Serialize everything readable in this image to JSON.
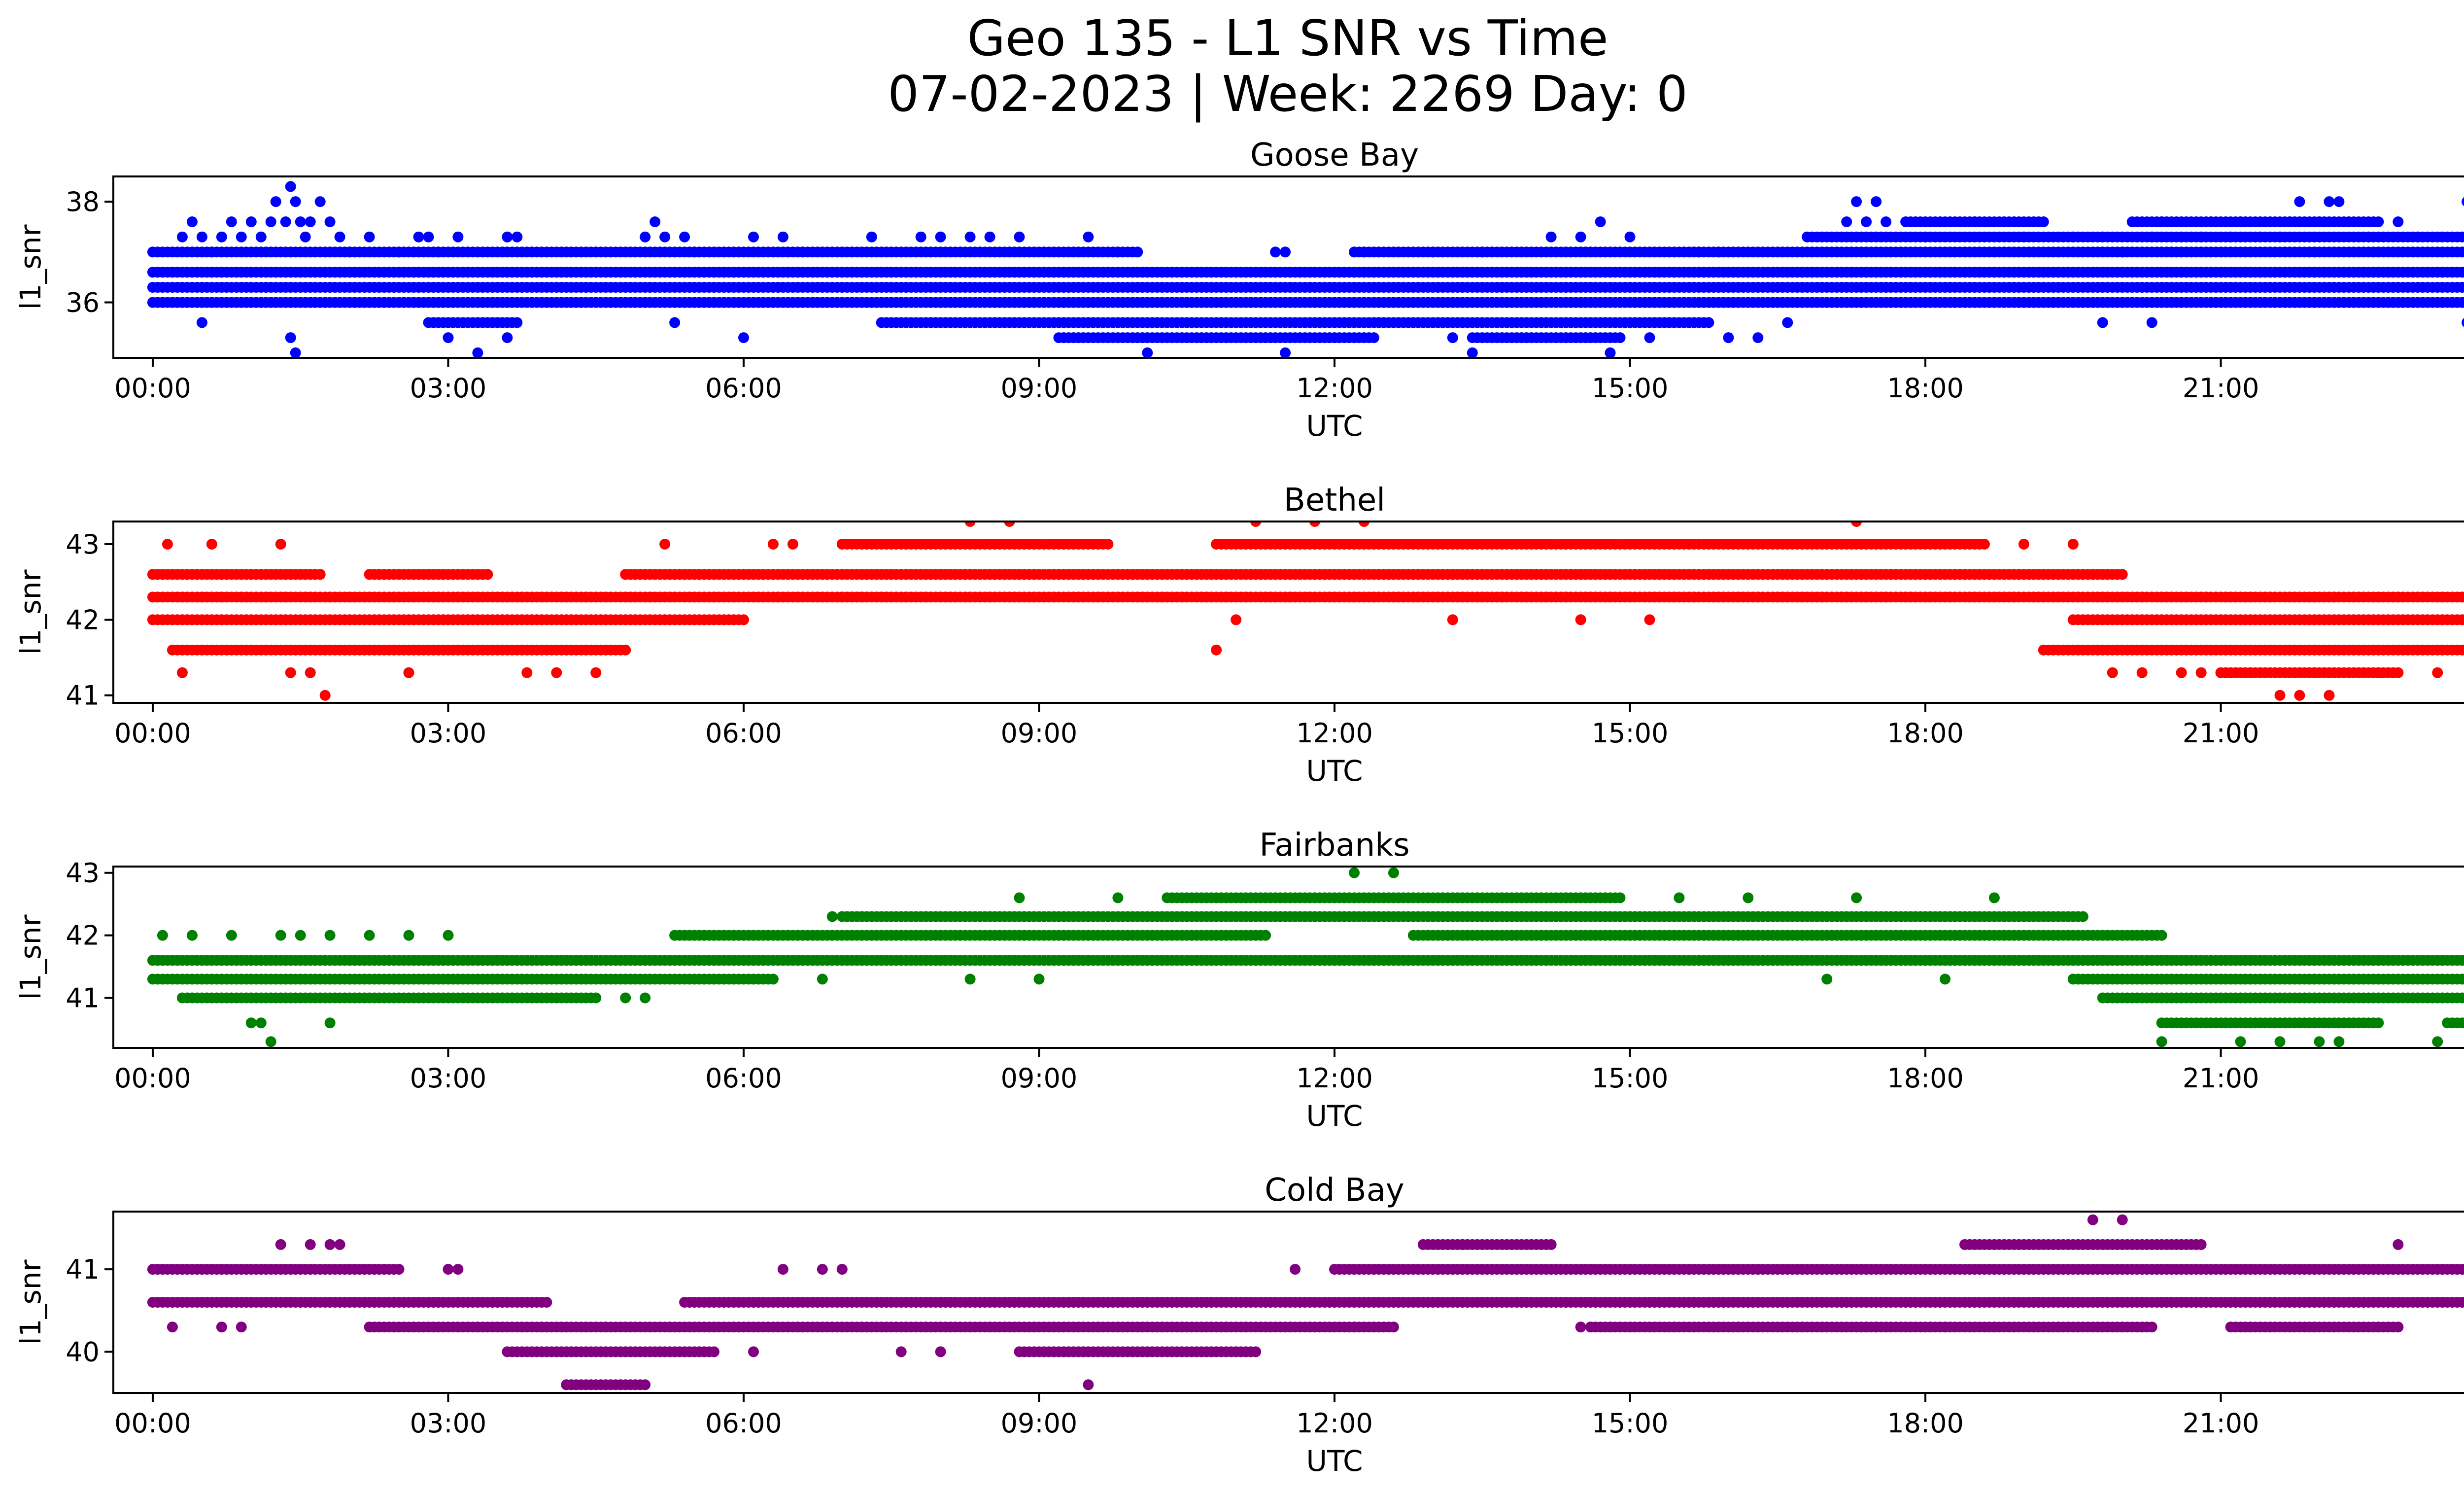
{
  "figure": {
    "title_line1": "Geo 135 - L1 SNR vs Time",
    "title_line2": "07-02-2023 | Week: 2269 Day: 0"
  },
  "chart_data": [
    {
      "type": "scatter",
      "title": "Goose Bay",
      "xlabel": "UTC",
      "ylabel": "l1_snr",
      "color": "#0000ff",
      "xlim": [
        -0.4,
        24.4
      ],
      "ylim": [
        34.9,
        38.5
      ],
      "xticks": [
        "00:00",
        "03:00",
        "06:00",
        "09:00",
        "12:00",
        "15:00",
        "18:00",
        "21:00",
        "00:00"
      ],
      "yticks": [
        36,
        38
      ],
      "bands": [
        {
          "y": 36.3,
          "ranges": [
            [
              0,
              24
            ]
          ]
        },
        {
          "y": 36.6,
          "ranges": [
            [
              0,
              24
            ]
          ]
        },
        {
          "y": 37.0,
          "ranges": [
            [
              0,
              10.0
            ],
            [
              12.2,
              24
            ]
          ]
        },
        {
          "y": 36.0,
          "ranges": [
            [
              0,
              24
            ]
          ]
        },
        {
          "y": 37.3,
          "ranges": [
            [
              16.8,
              24
            ]
          ]
        },
        {
          "y": 37.6,
          "ranges": [
            [
              17.8,
              19.2
            ],
            [
              20.1,
              22.6
            ]
          ]
        },
        {
          "y": 35.6,
          "ranges": [
            [
              2.8,
              3.7
            ],
            [
              7.4,
              15.8
            ]
          ]
        },
        {
          "y": 35.3,
          "ranges": [
            [
              9.2,
              12.4
            ],
            [
              13.4,
              14.9
            ]
          ]
        }
      ],
      "scatter": [
        [
          0.3,
          37.3
        ],
        [
          0.4,
          37.6
        ],
        [
          0.5,
          37.3
        ],
        [
          0.6,
          37.0
        ],
        [
          0.7,
          37.3
        ],
        [
          0.8,
          37.6
        ],
        [
          0.9,
          37.3
        ],
        [
          1.0,
          37.6
        ],
        [
          1.1,
          37.3
        ],
        [
          1.2,
          37.6
        ],
        [
          1.25,
          38.0
        ],
        [
          1.35,
          37.6
        ],
        [
          1.4,
          38.3
        ],
        [
          1.45,
          38.0
        ],
        [
          1.5,
          37.6
        ],
        [
          1.55,
          37.3
        ],
        [
          1.6,
          37.6
        ],
        [
          1.7,
          38.0
        ],
        [
          1.8,
          37.6
        ],
        [
          1.9,
          37.3
        ],
        [
          2.0,
          37.0
        ],
        [
          2.2,
          37.3
        ],
        [
          2.5,
          37.0
        ],
        [
          2.7,
          37.3
        ],
        [
          2.8,
          37.3
        ],
        [
          2.9,
          37.0
        ],
        [
          3.1,
          37.3
        ],
        [
          3.6,
          37.3
        ],
        [
          3.7,
          37.3
        ],
        [
          5.0,
          37.3
        ],
        [
          5.1,
          37.6
        ],
        [
          5.2,
          37.3
        ],
        [
          5.4,
          37.3
        ],
        [
          5.5,
          37.0
        ],
        [
          6.1,
          37.3
        ],
        [
          6.4,
          37.3
        ],
        [
          6.6,
          37.0
        ],
        [
          7.3,
          37.3
        ],
        [
          7.8,
          37.3
        ],
        [
          8.0,
          37.3
        ],
        [
          8.3,
          37.3
        ],
        [
          8.5,
          37.3
        ],
        [
          8.8,
          37.3
        ],
        [
          9.5,
          37.3
        ],
        [
          9.8,
          37.0
        ],
        [
          11.4,
          37.0
        ],
        [
          11.5,
          37.0
        ],
        [
          12.3,
          37.0
        ],
        [
          13.0,
          37.0
        ],
        [
          13.5,
          37.0
        ],
        [
          14.2,
          37.3
        ],
        [
          14.5,
          37.3
        ],
        [
          14.7,
          37.6
        ],
        [
          15.0,
          37.3
        ],
        [
          15.7,
          37.0
        ],
        [
          15.9,
          37.0
        ],
        [
          17.2,
          37.6
        ],
        [
          17.3,
          38.0
        ],
        [
          17.4,
          37.6
        ],
        [
          17.5,
          38.0
        ],
        [
          17.6,
          37.6
        ],
        [
          18.0,
          37.3
        ],
        [
          18.5,
          37.6
        ],
        [
          19.0,
          37.3
        ],
        [
          19.5,
          37.3
        ],
        [
          19.8,
          37.3
        ],
        [
          20.0,
          37.0
        ],
        [
          20.3,
          37.3
        ],
        [
          20.4,
          37.6
        ],
        [
          20.6,
          37.3
        ],
        [
          20.8,
          37.3
        ],
        [
          20.9,
          37.6
        ],
        [
          21.1,
          37.3
        ],
        [
          21.2,
          37.6
        ],
        [
          21.4,
          37.3
        ],
        [
          21.6,
          37.3
        ],
        [
          21.7,
          37.6
        ],
        [
          21.8,
          38.0
        ],
        [
          22.0,
          37.6
        ],
        [
          22.1,
          38.0
        ],
        [
          22.2,
          38.0
        ],
        [
          22.3,
          37.6
        ],
        [
          22.5,
          37.3
        ],
        [
          22.8,
          37.6
        ],
        [
          23.0,
          37.3
        ],
        [
          23.5,
          38.0
        ],
        [
          23.9,
          37.3
        ],
        [
          24.0,
          37.3
        ],
        [
          1.45,
          35.0
        ],
        [
          1.4,
          35.3
        ],
        [
          3.3,
          35.0
        ],
        [
          3.0,
          35.3
        ],
        [
          3.6,
          35.3
        ],
        [
          5.3,
          35.6
        ],
        [
          6.0,
          35.3
        ],
        [
          0.5,
          35.6
        ],
        [
          11.5,
          35.0
        ],
        [
          13.4,
          35.0
        ],
        [
          14.8,
          35.0
        ],
        [
          10.1,
          35.0
        ],
        [
          13.2,
          35.3
        ],
        [
          15.2,
          35.3
        ],
        [
          16.0,
          35.3
        ],
        [
          16.3,
          35.3
        ],
        [
          16.6,
          35.6
        ],
        [
          19.8,
          35.6
        ],
        [
          20.3,
          35.6
        ],
        [
          23.5,
          35.6
        ],
        [
          23.8,
          35.3
        ],
        [
          24.0,
          35.6
        ]
      ]
    },
    {
      "type": "scatter",
      "title": "Bethel",
      "xlabel": "UTC",
      "ylabel": "l1_snr",
      "color": "#ff0000",
      "xlim": [
        -0.4,
        24.4
      ],
      "ylim": [
        40.9,
        43.3
      ],
      "xticks": [
        "00:00",
        "03:00",
        "06:00",
        "09:00",
        "12:00",
        "15:00",
        "18:00",
        "21:00",
        "00:00"
      ],
      "yticks": [
        41,
        42,
        43
      ],
      "bands": [
        {
          "y": 42.3,
          "ranges": [
            [
              0,
              24
            ]
          ]
        },
        {
          "y": 42.0,
          "ranges": [
            [
              0,
              6.0
            ],
            [
              19.5,
              24
            ]
          ]
        },
        {
          "y": 42.6,
          "ranges": [
            [
              0,
              1.7
            ],
            [
              2.2,
              3.4
            ],
            [
              4.8,
              20.0
            ]
          ]
        },
        {
          "y": 41.6,
          "ranges": [
            [
              0.2,
              4.8
            ],
            [
              19.2,
              23.9
            ]
          ]
        },
        {
          "y": 41.3,
          "ranges": [
            [
              21.0,
              22.8
            ]
          ]
        },
        {
          "y": 43.0,
          "ranges": [
            [
              7.0,
              9.7
            ],
            [
              10.8,
              18.6
            ]
          ]
        }
      ],
      "scatter": [
        [
          0.15,
          43.0
        ],
        [
          0.6,
          43.0
        ],
        [
          1.3,
          43.0
        ],
        [
          0.3,
          41.3
        ],
        [
          1.4,
          41.3
        ],
        [
          1.6,
          41.3
        ],
        [
          1.75,
          41.0
        ],
        [
          2.6,
          41.3
        ],
        [
          3.8,
          41.3
        ],
        [
          4.1,
          41.3
        ],
        [
          4.5,
          41.3
        ],
        [
          5.2,
          43.0
        ],
        [
          6.3,
          43.0
        ],
        [
          6.5,
          43.0
        ],
        [
          8.3,
          43.3
        ],
        [
          8.7,
          43.3
        ],
        [
          11.2,
          43.3
        ],
        [
          11.8,
          43.3
        ],
        [
          12.3,
          43.3
        ],
        [
          17.3,
          43.3
        ],
        [
          10.8,
          41.6
        ],
        [
          11.0,
          42.0
        ],
        [
          13.2,
          42.0
        ],
        [
          14.5,
          42.0
        ],
        [
          15.2,
          42.0
        ],
        [
          19.0,
          43.0
        ],
        [
          19.5,
          43.0
        ],
        [
          19.9,
          41.3
        ],
        [
          20.2,
          41.3
        ],
        [
          20.6,
          41.3
        ],
        [
          21.6,
          41.0
        ],
        [
          21.8,
          41.0
        ],
        [
          22.1,
          41.0
        ],
        [
          23.2,
          41.3
        ],
        [
          23.6,
          42.6
        ],
        [
          23.8,
          42.6
        ],
        [
          24.0,
          41.6
        ],
        [
          20.8,
          41.3
        ]
      ]
    },
    {
      "type": "scatter",
      "title": "Fairbanks",
      "xlabel": "UTC",
      "ylabel": "l1_snr",
      "color": "#008000",
      "xlim": [
        -0.4,
        24.4
      ],
      "ylim": [
        40.2,
        43.1
      ],
      "xticks": [
        "00:00",
        "03:00",
        "06:00",
        "09:00",
        "12:00",
        "15:00",
        "18:00",
        "21:00",
        "00:00"
      ],
      "yticks": [
        41,
        42,
        43
      ],
      "bands": [
        {
          "y": 41.6,
          "ranges": [
            [
              0,
              24
            ]
          ]
        },
        {
          "y": 41.3,
          "ranges": [
            [
              0,
              6.3
            ],
            [
              19.5,
              24
            ]
          ]
        },
        {
          "y": 42.0,
          "ranges": [
            [
              5.3,
              11.3
            ],
            [
              12.8,
              20.4
            ]
          ]
        },
        {
          "y": 41.0,
          "ranges": [
            [
              0.3,
              4.5
            ],
            [
              19.8,
              24
            ]
          ]
        },
        {
          "y": 42.3,
          "ranges": [
            [
              7.0,
              19.6
            ]
          ]
        },
        {
          "y": 42.6,
          "ranges": [
            [
              10.3,
              14.9
            ]
          ]
        },
        {
          "y": 40.6,
          "ranges": [
            [
              20.4,
              22.6
            ],
            [
              23.3,
              24
            ]
          ]
        }
      ],
      "scatter": [
        [
          0.1,
          42.0
        ],
        [
          0.4,
          42.0
        ],
        [
          0.8,
          42.0
        ],
        [
          1.3,
          42.0
        ],
        [
          1.5,
          42.0
        ],
        [
          1.8,
          42.0
        ],
        [
          2.2,
          42.0
        ],
        [
          2.6,
          42.0
        ],
        [
          3.0,
          42.0
        ],
        [
          1.0,
          40.6
        ],
        [
          1.1,
          40.6
        ],
        [
          1.2,
          40.3
        ],
        [
          1.8,
          40.6
        ],
        [
          8.3,
          41.3
        ],
        [
          8.8,
          42.6
        ],
        [
          9.0,
          41.3
        ],
        [
          9.8,
          42.6
        ],
        [
          12.2,
          43.0
        ],
        [
          12.6,
          43.0
        ],
        [
          17.3,
          42.6
        ],
        [
          15.5,
          42.6
        ],
        [
          16.2,
          42.6
        ],
        [
          17.0,
          41.3
        ],
        [
          18.2,
          41.3
        ],
        [
          18.7,
          42.6
        ],
        [
          20.4,
          40.3
        ],
        [
          21.2,
          40.3
        ],
        [
          21.6,
          40.3
        ],
        [
          22.0,
          40.3
        ],
        [
          22.2,
          40.3
        ],
        [
          23.2,
          40.3
        ],
        [
          5.0,
          41.0
        ],
        [
          4.8,
          41.0
        ],
        [
          6.9,
          42.3
        ],
        [
          6.8,
          41.3
        ]
      ]
    },
    {
      "type": "scatter",
      "title": "Cold Bay",
      "xlabel": "UTC",
      "ylabel": "l1_snr",
      "color": "#800080",
      "xlim": [
        -0.4,
        24.4
      ],
      "ylim": [
        39.5,
        41.7
      ],
      "xticks": [
        "00:00",
        "03:00",
        "06:00",
        "09:00",
        "12:00",
        "15:00",
        "18:00",
        "21:00",
        "00:00"
      ],
      "yticks": [
        40,
        41
      ],
      "bands": [
        {
          "y": 40.6,
          "ranges": [
            [
              0,
              4.0
            ],
            [
              5.4,
              24
            ]
          ]
        },
        {
          "y": 40.3,
          "ranges": [
            [
              2.2,
              12.6
            ],
            [
              14.6,
              20.3
            ],
            [
              21.1,
              22.8
            ]
          ]
        },
        {
          "y": 41.0,
          "ranges": [
            [
              0,
              2.5
            ],
            [
              12.0,
              24
            ]
          ]
        },
        {
          "y": 40.0,
          "ranges": [
            [
              3.6,
              5.7
            ],
            [
              8.8,
              11.2
            ]
          ]
        },
        {
          "y": 41.3,
          "ranges": [
            [
              12.9,
              14.2
            ],
            [
              18.4,
              20.8
            ]
          ]
        },
        {
          "y": 39.6,
          "ranges": [
            [
              4.2,
              5.0
            ]
          ]
        }
      ],
      "scatter": [
        [
          0.2,
          40.3
        ],
        [
          0.7,
          40.3
        ],
        [
          0.9,
          40.3
        ],
        [
          1.3,
          41.3
        ],
        [
          1.6,
          41.3
        ],
        [
          1.8,
          41.3
        ],
        [
          1.9,
          41.3
        ],
        [
          3.0,
          41.0
        ],
        [
          3.1,
          41.0
        ],
        [
          6.4,
          41.0
        ],
        [
          6.8,
          41.0
        ],
        [
          7.0,
          41.0
        ],
        [
          7.6,
          40.0
        ],
        [
          8.0,
          40.0
        ],
        [
          9.5,
          39.6
        ],
        [
          11.6,
          41.0
        ],
        [
          12.2,
          40.3
        ],
        [
          13.3,
          41.3
        ],
        [
          14.2,
          41.3
        ],
        [
          14.5,
          40.3
        ],
        [
          15.6,
          41.0
        ],
        [
          19.7,
          41.6
        ],
        [
          20.0,
          41.6
        ],
        [
          22.8,
          41.3
        ],
        [
          18.2,
          40.3
        ],
        [
          17.5,
          40.3
        ],
        [
          16.3,
          41.0
        ],
        [
          6.1,
          40.0
        ]
      ]
    }
  ]
}
